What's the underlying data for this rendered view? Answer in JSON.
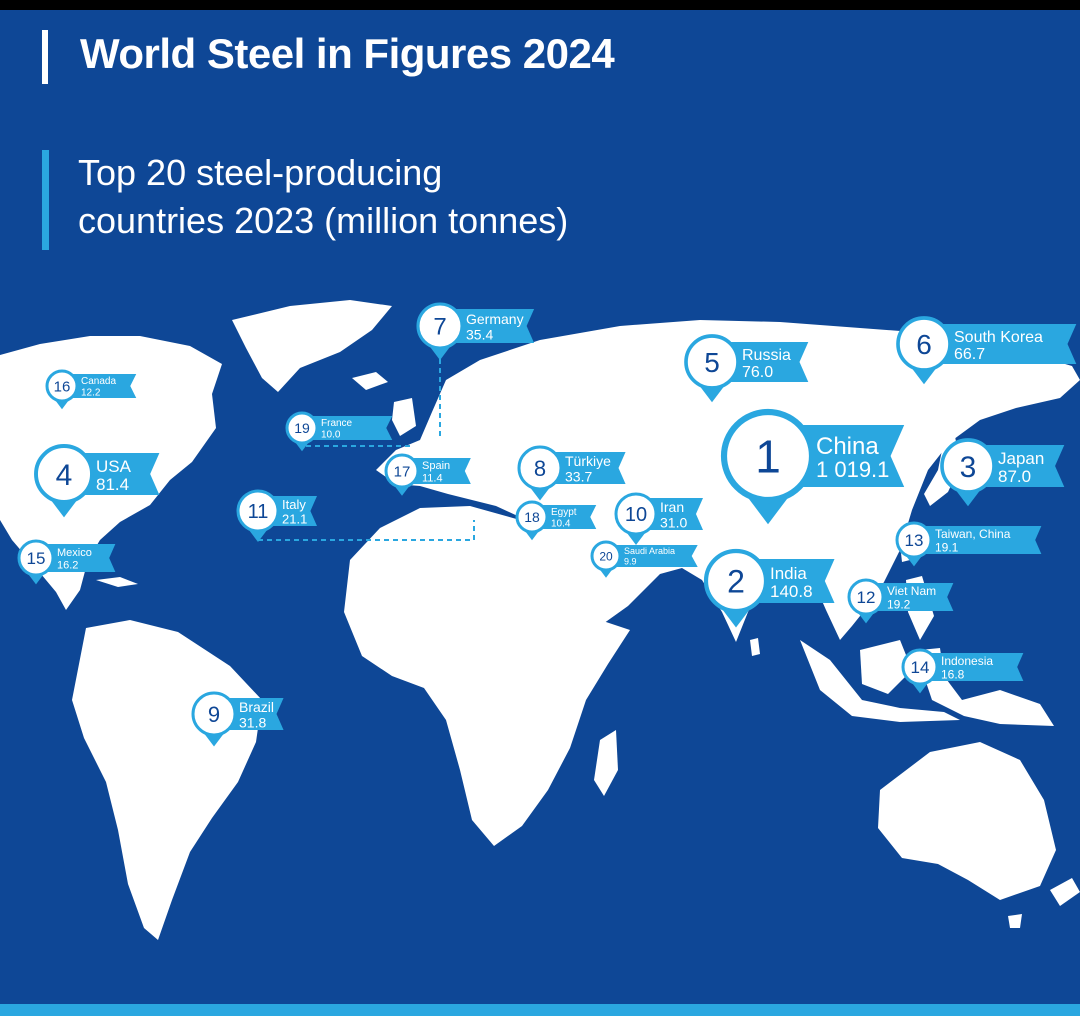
{
  "title": "World Steel in Figures 2024",
  "subtitle_line1": "Top 20 steel-producing",
  "subtitle_line2": "countries 2023 (million tonnes)",
  "colors": {
    "background": "#0e4796",
    "accent": "#2aa7e0",
    "land": "#ffffff",
    "marker_fill": "#ffffff",
    "marker_stroke": "#2aa7e0",
    "rank_text": "#0e4796",
    "label_bg": "#2aa7e0",
    "label_text": "#ffffff"
  },
  "countries": [
    {
      "rank": "1",
      "name": "China",
      "value": "1 019.1"
    },
    {
      "rank": "2",
      "name": "India",
      "value": "140.8"
    },
    {
      "rank": "3",
      "name": "Japan",
      "value": "87.0"
    },
    {
      "rank": "4",
      "name": "USA",
      "value": "81.4"
    },
    {
      "rank": "5",
      "name": "Russia",
      "value": "76.0"
    },
    {
      "rank": "6",
      "name": "South Korea",
      "value": "66.7"
    },
    {
      "rank": "7",
      "name": "Germany",
      "value": "35.4"
    },
    {
      "rank": "8",
      "name": "Türkiye",
      "value": "33.7"
    },
    {
      "rank": "9",
      "name": "Brazil",
      "value": "31.8"
    },
    {
      "rank": "10",
      "name": "Iran",
      "value": "31.0"
    },
    {
      "rank": "11",
      "name": "Italy",
      "value": "21.1"
    },
    {
      "rank": "12",
      "name": "Viet Nam",
      "value": "19.2"
    },
    {
      "rank": "13",
      "name": "Taiwan, China",
      "value": "19.1"
    },
    {
      "rank": "14",
      "name": "Indonesia",
      "value": "16.8"
    },
    {
      "rank": "15",
      "name": "Mexico",
      "value": "16.2"
    },
    {
      "rank": "16",
      "name": "Canada",
      "value": "12.2"
    },
    {
      "rank": "17",
      "name": "Spain",
      "value": "11.4"
    },
    {
      "rank": "18",
      "name": "Egypt",
      "value": "10.4"
    },
    {
      "rank": "19",
      "name": "France",
      "value": "10.0"
    },
    {
      "rank": "20",
      "name": "Saudi Arabia",
      "value": "9.9"
    }
  ]
}
